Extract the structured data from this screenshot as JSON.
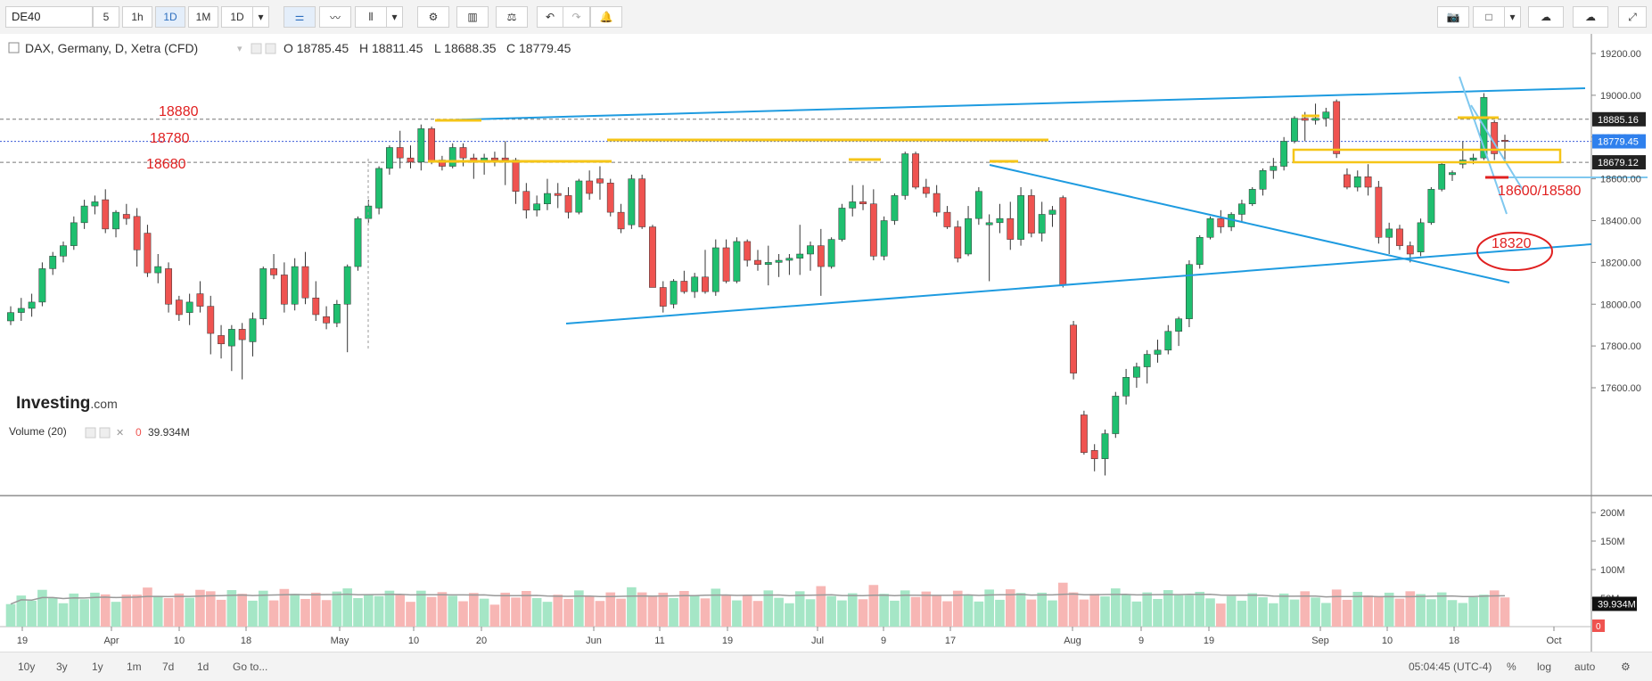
{
  "toolbar": {
    "symbol": "DE40",
    "intervals": [
      "5",
      "1h",
      "1D",
      "1M",
      "1D"
    ],
    "active_interval": 2
  },
  "legend": {
    "title": "DAX, Germany, D, Xetra (CFD)",
    "open": "O 18785.45",
    "high": "H 18811.45",
    "low": "L 18688.35",
    "close": "C 18779.45"
  },
  "volume_legend": {
    "title": "Volume (20)",
    "value_prefix": "0",
    "value": "39.934M"
  },
  "brand": {
    "name": "Investing",
    "suffix": ".com"
  },
  "annotations": {
    "level_high": "18880",
    "level_mid": "18780",
    "level_low": "18680",
    "target": "18600/18580",
    "circled": "18320"
  },
  "price_axis": {
    "ticks": [
      "19200.00",
      "19000.00",
      "18800.00",
      "18600.00",
      "18400.00",
      "18200.00",
      "18000.00",
      "17800.00",
      "17600.00"
    ],
    "tag_top": "18885.16",
    "tag_current": "18779.45",
    "tag_low": "18679.12"
  },
  "volume_axis": {
    "ticks": [
      "200M",
      "150M",
      "100M",
      "50M"
    ],
    "tag": "39.934M",
    "tag_zero": "0"
  },
  "time_axis": [
    "19",
    "Apr",
    "10",
    "18",
    "May",
    "10",
    "20",
    "Jun",
    "11",
    "19",
    "Jul",
    "9",
    "17",
    "Aug",
    "9",
    "19",
    "Sep",
    "10",
    "18",
    "Oct"
  ],
  "bottom": {
    "ranges": [
      "10y",
      "3y",
      "1y",
      "1m",
      "7d",
      "1d"
    ],
    "goto": "Go to...",
    "time": "05:04:45 (UTC-4)",
    "pct": "%",
    "log": "log",
    "auto": "auto"
  },
  "colors": {
    "up": "#1fbf6f",
    "down": "#ef5350",
    "trend": "#1e9be0",
    "level": "#f5c518",
    "annot": "#e02020"
  },
  "chart_data": {
    "type": "candlestick",
    "title": "DAX, Germany, D, Xetra (CFD)",
    "last": {
      "open": 18785.45,
      "high": 18811.45,
      "low": 18688.35,
      "close": 18779.45
    },
    "candles": [
      [
        17920,
        17990,
        17900,
        17960
      ],
      [
        17960,
        18030,
        17920,
        17980
      ],
      [
        17980,
        18050,
        17940,
        18010
      ],
      [
        18010,
        18200,
        17990,
        18170
      ],
      [
        18170,
        18250,
        18140,
        18230
      ],
      [
        18230,
        18300,
        18200,
        18280
      ],
      [
        18280,
        18420,
        18260,
        18390
      ],
      [
        18390,
        18500,
        18360,
        18470
      ],
      [
        18470,
        18520,
        18430,
        18490
      ],
      [
        18500,
        18550,
        18340,
        18360
      ],
      [
        18360,
        18450,
        18320,
        18440
      ],
      [
        18430,
        18480,
        18380,
        18410
      ],
      [
        18420,
        18460,
        18180,
        18260
      ],
      [
        18340,
        18380,
        18130,
        18150
      ],
      [
        18150,
        18240,
        18100,
        18180
      ],
      [
        18170,
        18200,
        17960,
        18000
      ],
      [
        18020,
        18040,
        17920,
        17950
      ],
      [
        17960,
        18050,
        17900,
        18010
      ],
      [
        18050,
        18110,
        17960,
        17990
      ],
      [
        17990,
        18040,
        17760,
        17860
      ],
      [
        17850,
        17900,
        17740,
        17810
      ],
      [
        17800,
        17900,
        17680,
        17880
      ],
      [
        17880,
        17910,
        17640,
        17830
      ],
      [
        17820,
        17960,
        17750,
        17930
      ],
      [
        17930,
        18180,
        17900,
        18170
      ],
      [
        18170,
        18240,
        18120,
        18140
      ],
      [
        18140,
        18200,
        17960,
        18000
      ],
      [
        18000,
        18220,
        17970,
        18180
      ],
      [
        18180,
        18250,
        18000,
        18030
      ],
      [
        18030,
        18110,
        17920,
        17950
      ],
      [
        17940,
        17990,
        17880,
        17910
      ],
      [
        17910,
        18020,
        17890,
        18000
      ],
      [
        18000,
        18190,
        17770,
        18180
      ],
      [
        18180,
        18420,
        18160,
        18410
      ],
      [
        18410,
        18500,
        18390,
        18470
      ],
      [
        18460,
        18660,
        18430,
        18650
      ],
      [
        18650,
        18760,
        18620,
        18750
      ],
      [
        18750,
        18830,
        18650,
        18700
      ],
      [
        18700,
        18760,
        18650,
        18680
      ],
      [
        18680,
        18860,
        18640,
        18840
      ],
      [
        18840,
        18850,
        18670,
        18680
      ],
      [
        18690,
        18710,
        18640,
        18660
      ],
      [
        18660,
        18770,
        18650,
        18750
      ],
      [
        18750,
        18770,
        18660,
        18700
      ],
      [
        18700,
        18720,
        18600,
        18680
      ],
      [
        18680,
        18720,
        18620,
        18700
      ],
      [
        18700,
        18730,
        18660,
        18690
      ],
      [
        18700,
        18780,
        18570,
        18690
      ],
      [
        18690,
        18700,
        18480,
        18540
      ],
      [
        18540,
        18580,
        18410,
        18450
      ],
      [
        18450,
        18520,
        18420,
        18480
      ],
      [
        18480,
        18600,
        18450,
        18530
      ],
      [
        18530,
        18580,
        18460,
        18520
      ],
      [
        18520,
        18560,
        18410,
        18440
      ],
      [
        18440,
        18600,
        18430,
        18590
      ],
      [
        18590,
        18640,
        18500,
        18530
      ],
      [
        18600,
        18660,
        18500,
        18580
      ],
      [
        18580,
        18600,
        18420,
        18440
      ],
      [
        18440,
        18480,
        18340,
        18360
      ],
      [
        18380,
        18620,
        18360,
        18600
      ],
      [
        18600,
        18620,
        18360,
        18370
      ],
      [
        18370,
        18380,
        18080,
        18080
      ],
      [
        18080,
        18110,
        17960,
        17990
      ],
      [
        18000,
        18120,
        17980,
        18110
      ],
      [
        18110,
        18160,
        18050,
        18060
      ],
      [
        18060,
        18150,
        18030,
        18130
      ],
      [
        18130,
        18260,
        18050,
        18060
      ],
      [
        18060,
        18310,
        18040,
        18270
      ],
      [
        18270,
        18310,
        18100,
        18110
      ],
      [
        18110,
        18320,
        18100,
        18300
      ],
      [
        18300,
        18310,
        18180,
        18210
      ],
      [
        18210,
        18260,
        18160,
        18190
      ],
      [
        18190,
        18280,
        18090,
        18200
      ],
      [
        18200,
        18240,
        18130,
        18210
      ],
      [
        18210,
        18240,
        18140,
        18220
      ],
      [
        18220,
        18380,
        18140,
        18240
      ],
      [
        18240,
        18300,
        18160,
        18280
      ],
      [
        18280,
        18360,
        18040,
        18180
      ],
      [
        18180,
        18320,
        18170,
        18310
      ],
      [
        18310,
        18480,
        18300,
        18460
      ],
      [
        18460,
        18570,
        18420,
        18490
      ],
      [
        18490,
        18570,
        18450,
        18480
      ],
      [
        18480,
        18550,
        18210,
        18230
      ],
      [
        18230,
        18420,
        18210,
        18400
      ],
      [
        18400,
        18530,
        18380,
        18520
      ],
      [
        18520,
        18730,
        18500,
        18720
      ],
      [
        18720,
        18730,
        18550,
        18560
      ],
      [
        18560,
        18600,
        18510,
        18530
      ],
      [
        18530,
        18570,
        18420,
        18440
      ],
      [
        18440,
        18470,
        18360,
        18370
      ],
      [
        18370,
        18400,
        18200,
        18220
      ],
      [
        18240,
        18470,
        18230,
        18410
      ],
      [
        18410,
        18560,
        18380,
        18540
      ],
      [
        18380,
        18430,
        18110,
        18390
      ],
      [
        18390,
        18480,
        18340,
        18410
      ],
      [
        18410,
        18490,
        18260,
        18310
      ],
      [
        18310,
        18560,
        18280,
        18520
      ],
      [
        18520,
        18550,
        18320,
        18340
      ],
      [
        18340,
        18490,
        18300,
        18430
      ],
      [
        18430,
        18470,
        18370,
        18450
      ],
      [
        18510,
        18520,
        18080,
        18090
      ],
      [
        17900,
        17920,
        17640,
        17670
      ],
      [
        17470,
        17490,
        17280,
        17290
      ],
      [
        17300,
        17330,
        17200,
        17260
      ],
      [
        17260,
        17400,
        17180,
        17380
      ],
      [
        17380,
        17580,
        17360,
        17560
      ],
      [
        17560,
        17690,
        17520,
        17650
      ],
      [
        17650,
        17720,
        17600,
        17700
      ],
      [
        17700,
        17780,
        17620,
        17760
      ],
      [
        17760,
        17830,
        17720,
        17780
      ],
      [
        17780,
        17900,
        17760,
        17870
      ],
      [
        17870,
        17940,
        17800,
        17930
      ],
      [
        17930,
        18210,
        17890,
        18190
      ],
      [
        18190,
        18330,
        18170,
        18320
      ],
      [
        18320,
        18420,
        18310,
        18410
      ],
      [
        18410,
        18450,
        18340,
        18370
      ],
      [
        18370,
        18440,
        18350,
        18430
      ],
      [
        18430,
        18500,
        18390,
        18480
      ],
      [
        18480,
        18560,
        18470,
        18550
      ],
      [
        18550,
        18650,
        18520,
        18640
      ],
      [
        18640,
        18700,
        18600,
        18660
      ],
      [
        18660,
        18800,
        18640,
        18780
      ],
      [
        18780,
        18900,
        18770,
        18890
      ],
      [
        18890,
        18920,
        18780,
        18880
      ],
      [
        18880,
        18960,
        18860,
        18890
      ],
      [
        18890,
        18940,
        18850,
        18920
      ],
      [
        18970,
        18980,
        18700,
        18720
      ],
      [
        18620,
        18650,
        18550,
        18560
      ],
      [
        18560,
        18640,
        18540,
        18610
      ],
      [
        18610,
        18670,
        18520,
        18560
      ],
      [
        18560,
        18590,
        18290,
        18320
      ],
      [
        18320,
        18390,
        18240,
        18360
      ],
      [
        18360,
        18380,
        18260,
        18280
      ],
      [
        18280,
        18300,
        18200,
        18240
      ],
      [
        18250,
        18410,
        18230,
        18390
      ],
      [
        18390,
        18560,
        18380,
        18550
      ],
      [
        18550,
        18680,
        18540,
        18670
      ],
      [
        18620,
        18640,
        18590,
        18630
      ],
      [
        18670,
        18780,
        18650,
        18690
      ],
      [
        18690,
        18720,
        18670,
        18700
      ],
      [
        18700,
        19010,
        18690,
        18990
      ],
      [
        18870,
        18880,
        18690,
        18720
      ],
      [
        18785,
        18811,
        18688,
        18779
      ]
    ],
    "volume_ylim": [
      0,
      200
    ],
    "price_ylim": [
      17470,
      19260
    ],
    "price_scale_pixels": [
      [
        19200,
        22
      ],
      [
        17600,
        397
      ]
    ]
  }
}
